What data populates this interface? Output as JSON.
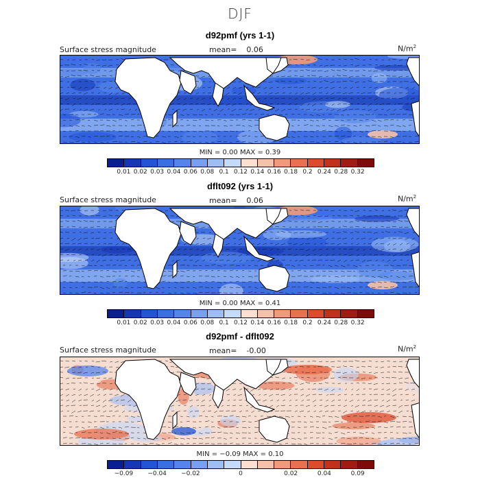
{
  "title": "DJF",
  "panels": [
    {
      "title": "d92pmf (yrs 1-1)",
      "field": "Surface stress magnitude",
      "mean_label": "mean=",
      "mean_value": "0.06",
      "units": "N/m",
      "units_sup": "2",
      "minmax": "MIN =    0.00  MAX =    0.39",
      "ticks": [
        "0.01",
        "0.02",
        "0.03",
        "0.04",
        "0.06",
        "0.08",
        "0.1",
        "0.12",
        "0.14",
        "0.16",
        "0.18",
        "0.2",
        "0.24",
        "0.28",
        "0.32"
      ],
      "tick_slots": [
        1,
        2,
        3,
        4,
        5,
        6,
        7,
        8,
        9,
        10,
        11,
        12,
        13,
        14,
        15
      ],
      "colors": [
        "#0a1f8f",
        "#1536b5",
        "#2454d6",
        "#3a6fe3",
        "#5585ea",
        "#77a1ef",
        "#9dbdf5",
        "#c5d9f8",
        "#fbe0d2",
        "#f6c1aa",
        "#f09a7b",
        "#e87150",
        "#dd4b2c",
        "#c2311c",
        "#a01c12",
        "#7d0c08"
      ],
      "map_style": "magnitude"
    },
    {
      "title": "dflt092 (yrs 1-1)",
      "field": "Surface stress magnitude",
      "mean_label": "mean=",
      "mean_value": "0.06",
      "units": "N/m",
      "units_sup": "2",
      "minmax": "MIN =    0.00  MAX =    0.41",
      "ticks": [
        "0.01",
        "0.02",
        "0.03",
        "0.04",
        "0.06",
        "0.08",
        "0.1",
        "0.12",
        "0.14",
        "0.16",
        "0.18",
        "0.2",
        "0.24",
        "0.28",
        "0.32"
      ],
      "tick_slots": [
        1,
        2,
        3,
        4,
        5,
        6,
        7,
        8,
        9,
        10,
        11,
        12,
        13,
        14,
        15
      ],
      "colors": [
        "#0a1f8f",
        "#1536b5",
        "#2454d6",
        "#3a6fe3",
        "#5585ea",
        "#77a1ef",
        "#9dbdf5",
        "#c5d9f8",
        "#fbe0d2",
        "#f6c1aa",
        "#f09a7b",
        "#e87150",
        "#dd4b2c",
        "#c2311c",
        "#a01c12",
        "#7d0c08"
      ],
      "map_style": "magnitude"
    },
    {
      "title": "d92pmf - dflt092",
      "field": "Surface stress magnitude",
      "mean_label": "mean=",
      "mean_value": "-0.00",
      "units": "N/m",
      "units_sup": "2",
      "minmax": "MIN =   −0.09  MAX =    0.10",
      "ticks": [
        "−0.09",
        "−0.04",
        "−0.02",
        "0",
        "0.02",
        "0.04",
        "0.09"
      ],
      "tick_slots": [
        1,
        3,
        5,
        8,
        11,
        13,
        15
      ],
      "colors": [
        "#0a1f8f",
        "#1536b5",
        "#2454d6",
        "#3a6fe3",
        "#5585ea",
        "#77a1ef",
        "#9dbdf5",
        "#c5d9f8",
        "#fbe0d2",
        "#f6c1aa",
        "#f09a7b",
        "#e87150",
        "#dd4b2c",
        "#c2311c",
        "#a01c12",
        "#7d0c08"
      ],
      "map_style": "difference"
    }
  ]
}
